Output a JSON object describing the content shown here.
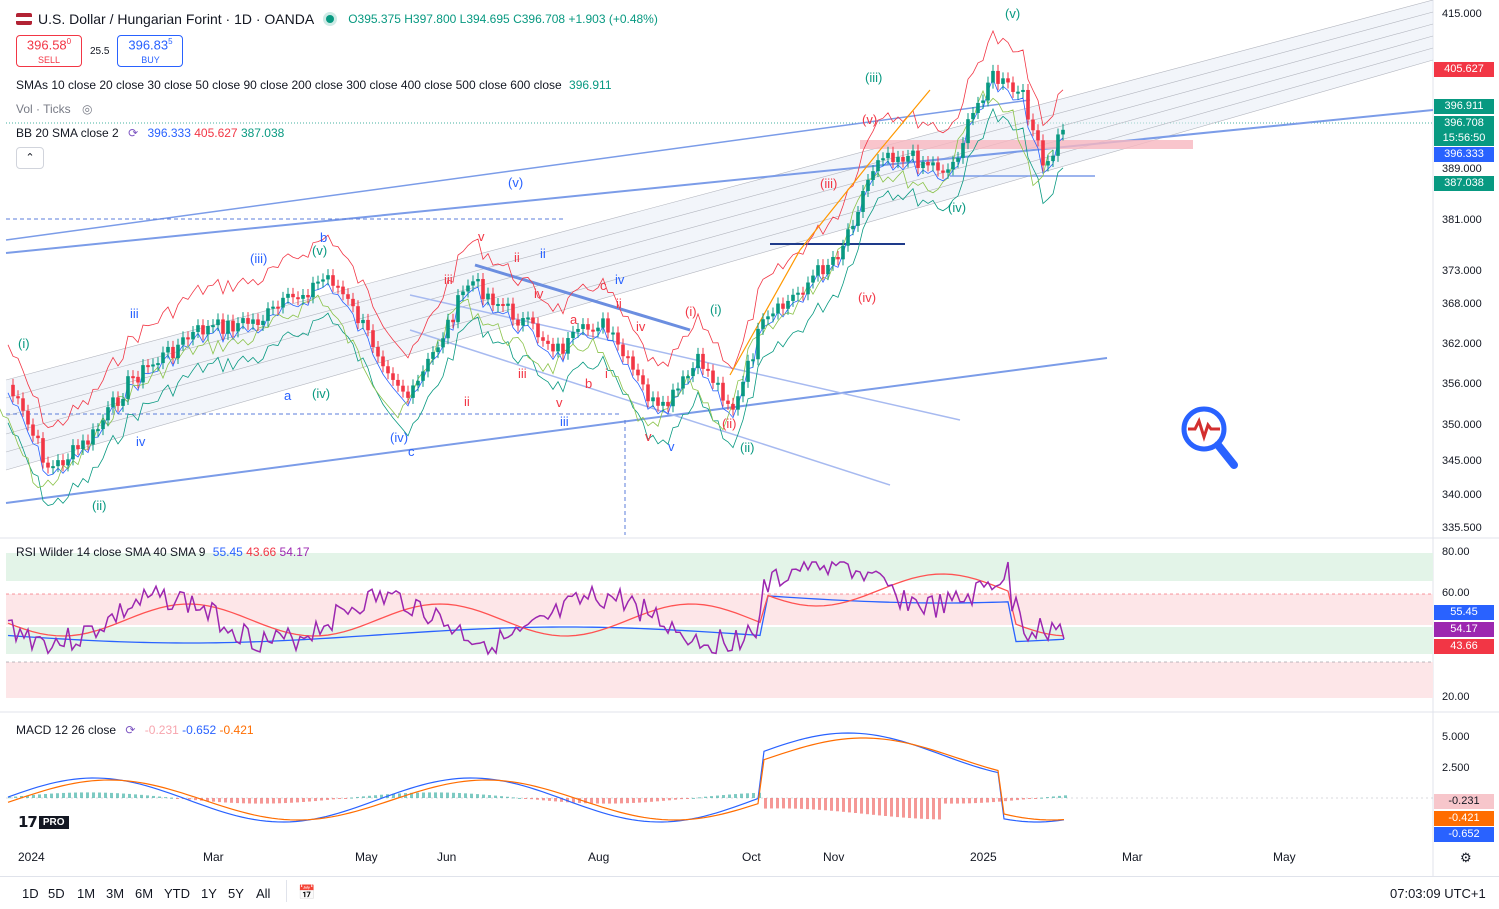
{
  "header": {
    "title": "U.S. Dollar / Hungarian Forint · 1D · OANDA",
    "open": "O395.375",
    "high": "H397.800",
    "low": "L394.695",
    "close": "C396.708",
    "change": "+1.903 (+0.48%)"
  },
  "trade": {
    "sell_price": "396.58",
    "sell_sup": "0",
    "sell_label": "SELL",
    "spread": "25.5",
    "buy_price": "396.83",
    "buy_sup": "5",
    "buy_label": "BUY"
  },
  "indicators": {
    "smas": "SMAs 10 close 20 close 30 close 50 close 90 close 200 close 300 close 400 close 500 close 600 close",
    "smas_val": "396.911",
    "vol": "Vol · Ticks",
    "bb": "BB 20 SMA close 2",
    "bb_v1": "396.333",
    "bb_v2": "405.627",
    "bb_v3": "387.038",
    "rsi": "RSI Wilder 14 close SMA 40 SMA 9",
    "rsi_v1": "55.45",
    "rsi_v2": "43.66",
    "rsi_v3": "54.17",
    "macd": "MACD 12 26 close",
    "macd_v1": "-0.231",
    "macd_v2": "-0.652",
    "macd_v3": "-0.421"
  },
  "price_axis": [
    "415.000",
    "381.000",
    "373.000",
    "368.000",
    "362.000",
    "356.000",
    "350.000",
    "345.000",
    "340.000",
    "335.500"
  ],
  "price_tags": {
    "bb_upper": "405.627",
    "sma": "396.911",
    "last": "396.708",
    "countdown": "15:56:50",
    "bb_mid": "396.333",
    "level": "389.000",
    "bb_lower": "387.038"
  },
  "rsi_axis": [
    "80.00",
    "60.00",
    "20.00"
  ],
  "rsi_tags": [
    "55.45",
    "54.17",
    "43.66"
  ],
  "macd_axis": [
    "5.000",
    "2.500"
  ],
  "macd_tags": [
    "-0.231",
    "-0.421",
    "-0.652"
  ],
  "months": [
    "2024",
    "Mar",
    "May",
    "Jun",
    "Aug",
    "Oct",
    "Nov",
    "2025",
    "Mar",
    "May"
  ],
  "timeframes": [
    "1D",
    "5D",
    "1M",
    "3M",
    "6M",
    "YTD",
    "1Y",
    "5Y",
    "All"
  ],
  "clock": "07:03:09 UTC+1",
  "wave_labels": {
    "green": [
      "(i)",
      "(ii)",
      "(iii)",
      "(iv)",
      "(v)",
      "(i)",
      "(ii)",
      "(iii)",
      "(iv)",
      "(v)",
      "(v)"
    ],
    "blue": [
      "i",
      "ii",
      "iii",
      "iv",
      "a",
      "b",
      "c",
      "(iv)",
      "v",
      "(v)",
      "(iii)",
      "iii",
      "iv",
      "ii",
      "(ii)",
      "b",
      "i",
      "v"
    ],
    "red": [
      "iii",
      "iv",
      "v",
      "ii",
      "iii",
      "ii",
      "iv",
      "a",
      "b",
      "c",
      "i",
      "ii",
      "iv",
      "v",
      "iii",
      "(i)",
      "(ii)",
      "(iii)",
      "(iv)",
      "(v)"
    ]
  },
  "colors": {
    "up": "#089981",
    "down": "#f23645",
    "accent": "#2962ff",
    "purple": "#9c27b0",
    "orange": "#ff6d00"
  }
}
